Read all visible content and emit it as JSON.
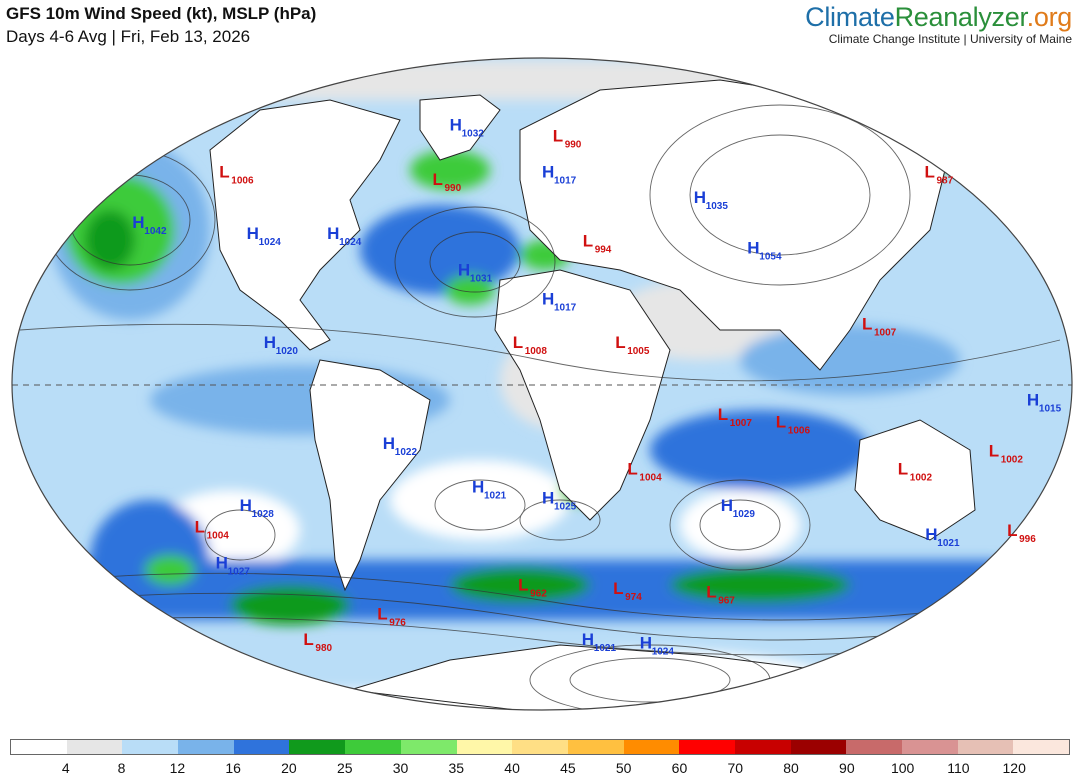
{
  "header": {
    "title": "GFS 10m Wind Speed (kt), MSLP (hPa)",
    "subtitle": "Days 4-6 Avg | Fri, Feb 13, 2026"
  },
  "branding": {
    "part1": "Climate",
    "part2": "Reanalyzer",
    "part3": ".org",
    "subtitle": "Climate Change Institute | University of Maine",
    "colors": {
      "part1": "#1e6fa8",
      "part2": "#2a8f3a",
      "part3": "#e07b1a"
    }
  },
  "colorbar": {
    "ticks": [
      "4",
      "8",
      "12",
      "16",
      "20",
      "25",
      "30",
      "35",
      "40",
      "45",
      "50",
      "60",
      "70",
      "80",
      "90",
      "100",
      "110",
      "120"
    ],
    "colors": [
      "#ffffff",
      "#e6e6e6",
      "#b9ddf7",
      "#79b3ea",
      "#2f73dc",
      "#109a1c",
      "#3ecb3a",
      "#7ee96a",
      "#fff7a8",
      "#ffdf85",
      "#ffc040",
      "#ff8c00",
      "#ff0000",
      "#c80000",
      "#9b0000",
      "#c86a6a",
      "#d99393",
      "#e6c0b5",
      "#fbe7dd"
    ]
  },
  "pressure_centers": [
    {
      "type": "H",
      "value": "1042",
      "lon": -155,
      "lat": 43
    },
    {
      "type": "L",
      "value": "1006",
      "lon": -135,
      "lat": 57
    },
    {
      "type": "H",
      "value": "1024",
      "lon": -110,
      "lat": 40
    },
    {
      "type": "H",
      "value": "1024",
      "lon": -80,
      "lat": 40
    },
    {
      "type": "H",
      "value": "1032",
      "lon": -45,
      "lat": 70
    },
    {
      "type": "L",
      "value": "990",
      "lon": -45,
      "lat": 55
    },
    {
      "type": "H",
      "value": "1031",
      "lon": -30,
      "lat": 30
    },
    {
      "type": "L",
      "value": "990",
      "lon": 5,
      "lat": 67
    },
    {
      "type": "H",
      "value": "1017",
      "lon": 0,
      "lat": 57
    },
    {
      "type": "L",
      "value": "994",
      "lon": 15,
      "lat": 38
    },
    {
      "type": "H",
      "value": "1035",
      "lon": 60,
      "lat": 50
    },
    {
      "type": "H",
      "value": "1054",
      "lon": 75,
      "lat": 36
    },
    {
      "type": "L",
      "value": "987",
      "lon": 160,
      "lat": 57
    },
    {
      "type": "H",
      "value": "1017",
      "lon": 0,
      "lat": 22
    },
    {
      "type": "L",
      "value": "1008",
      "lon": -10,
      "lat": 10
    },
    {
      "type": "L",
      "value": "1005",
      "lon": 25,
      "lat": 10
    },
    {
      "type": "L",
      "value": "1007",
      "lon": 110,
      "lat": 15
    },
    {
      "type": "H",
      "value": "1020",
      "lon": -95,
      "lat": 10
    },
    {
      "type": "H",
      "value": "1015",
      "lon": 165,
      "lat": -6
    },
    {
      "type": "L",
      "value": "1007",
      "lon": 60,
      "lat": -10
    },
    {
      "type": "L",
      "value": "1006",
      "lon": 80,
      "lat": -12
    },
    {
      "type": "L",
      "value": "1002",
      "lon": 125,
      "lat": -25
    },
    {
      "type": "L",
      "value": "1002",
      "lon": 155,
      "lat": -20
    },
    {
      "type": "H",
      "value": "1022",
      "lon": -55,
      "lat": -18
    },
    {
      "type": "L",
      "value": "1004",
      "lon": 30,
      "lat": -25
    },
    {
      "type": "H",
      "value": "1021",
      "lon": -25,
      "lat": -30
    },
    {
      "type": "H",
      "value": "1025",
      "lon": 0,
      "lat": -33
    },
    {
      "type": "H",
      "value": "1029",
      "lon": 65,
      "lat": -35
    },
    {
      "type": "H",
      "value": "1028",
      "lon": -110,
      "lat": -35
    },
    {
      "type": "L",
      "value": "1004",
      "lon": -130,
      "lat": -41
    },
    {
      "type": "H",
      "value": "1021",
      "lon": 145,
      "lat": -43
    },
    {
      "type": "L",
      "value": "996",
      "lon": 175,
      "lat": -42
    },
    {
      "type": "H",
      "value": "1027",
      "lon": -130,
      "lat": -51
    },
    {
      "type": "L",
      "value": "962",
      "lon": -10,
      "lat": -57
    },
    {
      "type": "L",
      "value": "974",
      "lon": 30,
      "lat": -58
    },
    {
      "type": "L",
      "value": "967",
      "lon": 70,
      "lat": -59
    },
    {
      "type": "L",
      "value": "976",
      "lon": -75,
      "lat": -65
    },
    {
      "type": "L",
      "value": "980",
      "lon": -120,
      "lat": -72
    },
    {
      "type": "H",
      "value": "1021",
      "lon": 20,
      "lat": -72
    },
    {
      "type": "H",
      "value": "1024",
      "lon": 50,
      "lat": -73
    }
  ]
}
